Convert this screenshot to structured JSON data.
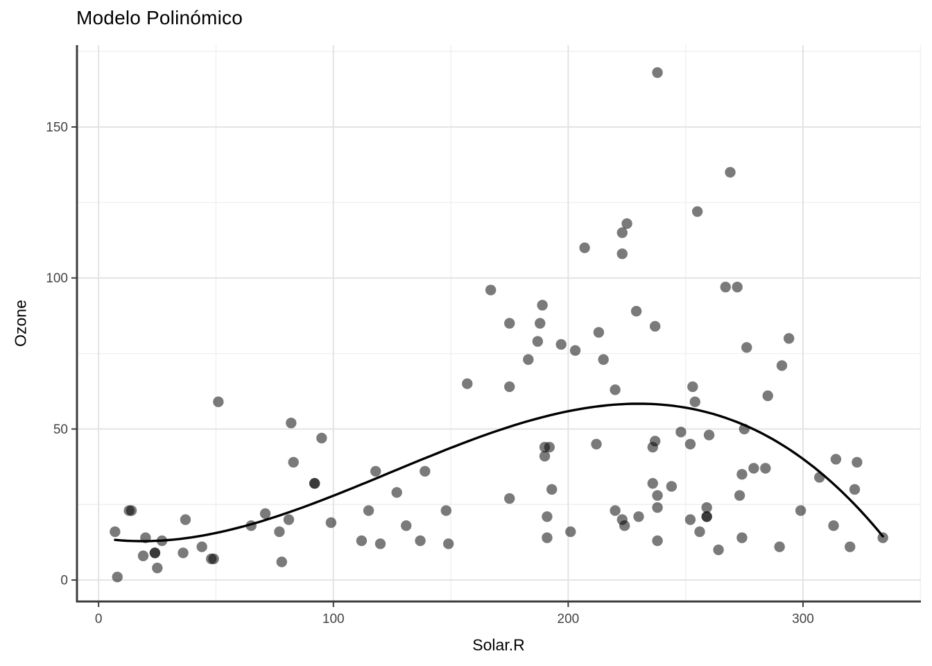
{
  "chart_data": {
    "type": "scatter",
    "title": "Modelo Polinómico",
    "xlabel": "Solar.R",
    "ylabel": "Ozone",
    "x_ticks": [
      0,
      100,
      200,
      300
    ],
    "y_ticks": [
      0,
      50,
      100,
      150
    ],
    "x_minor_gridlines": [
      50,
      150,
      250,
      350
    ],
    "y_minor_gridlines": [
      25,
      75,
      125,
      175
    ],
    "x_domain": [
      -9.2,
      350.2
    ],
    "y_domain": [
      -7.1,
      177.1
    ],
    "grid": "major+minor",
    "legend": "none",
    "points": [
      [
        190,
        41
      ],
      [
        118,
        36
      ],
      [
        149,
        12
      ],
      [
        313,
        18
      ],
      [
        299,
        23
      ],
      [
        99,
        19
      ],
      [
        19,
        8
      ],
      [
        256,
        16
      ],
      [
        290,
        11
      ],
      [
        274,
        14
      ],
      [
        65,
        18
      ],
      [
        334,
        14
      ],
      [
        307,
        34
      ],
      [
        78,
        6
      ],
      [
        322,
        30
      ],
      [
        44,
        11
      ],
      [
        8,
        1
      ],
      [
        320,
        11
      ],
      [
        25,
        4
      ],
      [
        236,
        32
      ],
      [
        13,
        23
      ],
      [
        252,
        45
      ],
      [
        223,
        115
      ],
      [
        279,
        37
      ],
      [
        127,
        29
      ],
      [
        291,
        71
      ],
      [
        323,
        39
      ],
      [
        148,
        23
      ],
      [
        191,
        21
      ],
      [
        284,
        37
      ],
      [
        37,
        20
      ],
      [
        120,
        12
      ],
      [
        137,
        13
      ],
      [
        269,
        135
      ],
      [
        248,
        49
      ],
      [
        92,
        32
      ],
      [
        175,
        64
      ],
      [
        314,
        40
      ],
      [
        276,
        77
      ],
      [
        267,
        97
      ],
      [
        272,
        97
      ],
      [
        175,
        85
      ],
      [
        264,
        10
      ],
      [
        175,
        27
      ],
      [
        48,
        7
      ],
      [
        260,
        48
      ],
      [
        274,
        35
      ],
      [
        285,
        61
      ],
      [
        187,
        79
      ],
      [
        220,
        63
      ],
      [
        7,
        16
      ],
      [
        294,
        80
      ],
      [
        223,
        108
      ],
      [
        81,
        20
      ],
      [
        82,
        52
      ],
      [
        213,
        82
      ],
      [
        275,
        50
      ],
      [
        253,
        64
      ],
      [
        254,
        59
      ],
      [
        83,
        39
      ],
      [
        24,
        9
      ],
      [
        77,
        16
      ],
      [
        255,
        122
      ],
      [
        229,
        89
      ],
      [
        207,
        110
      ],
      [
        192,
        44
      ],
      [
        273,
        28
      ],
      [
        157,
        65
      ],
      [
        71,
        22
      ],
      [
        51,
        59
      ],
      [
        115,
        23
      ],
      [
        244,
        31
      ],
      [
        190,
        44
      ],
      [
        259,
        21
      ],
      [
        36,
        9
      ],
      [
        212,
        45
      ],
      [
        238,
        168
      ],
      [
        215,
        73
      ],
      [
        203,
        76
      ],
      [
        225,
        118
      ],
      [
        237,
        84
      ],
      [
        188,
        85
      ],
      [
        167,
        96
      ],
      [
        197,
        78
      ],
      [
        183,
        73
      ],
      [
        189,
        91
      ],
      [
        95,
        47
      ],
      [
        92,
        32
      ],
      [
        252,
        20
      ],
      [
        220,
        23
      ],
      [
        230,
        21
      ],
      [
        259,
        24
      ],
      [
        236,
        44
      ],
      [
        259,
        21
      ],
      [
        238,
        28
      ],
      [
        24,
        9
      ],
      [
        112,
        13
      ],
      [
        237,
        46
      ],
      [
        224,
        18
      ],
      [
        27,
        13
      ],
      [
        238,
        24
      ],
      [
        201,
        16
      ],
      [
        238,
        13
      ],
      [
        14,
        23
      ],
      [
        139,
        36
      ],
      [
        49,
        7
      ],
      [
        20,
        14
      ],
      [
        193,
        30
      ],
      [
        191,
        14
      ],
      [
        131,
        18
      ],
      [
        223,
        20
      ]
    ],
    "fit_curve": {
      "model": "cubic polynomial",
      "coefficients": {
        "intercept": 13.99,
        "x": -0.12392,
        "x2": 0.0035948,
        "x3": -9.639e-06
      },
      "x_range": [
        7,
        334
      ],
      "local_min": {
        "x": 19,
        "y": 12.9
      },
      "peak": {
        "x": 230,
        "y": 58.4
      }
    },
    "style": {
      "background": "#ffffff",
      "point_color": "rgba(0,0,0,0.52)",
      "point_radius": 7.7,
      "curve_color": "#000000",
      "curve_width": 3.4,
      "grid_major_color": "#e3e3e3",
      "grid_minor_color": "#efefef",
      "axis_line_color": "#3d3d3d",
      "tick_color": "#3d3d3d",
      "tick_label_color": "#424242",
      "title_color": "#000000"
    }
  }
}
